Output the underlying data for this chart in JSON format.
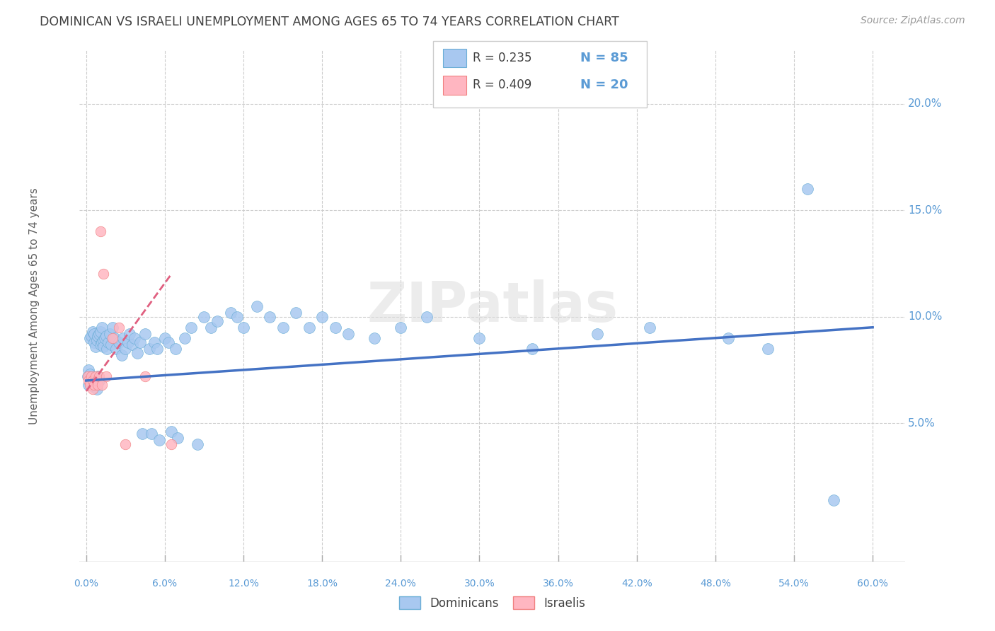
{
  "title": "DOMINICAN VS ISRAELI UNEMPLOYMENT AMONG AGES 65 TO 74 YEARS CORRELATION CHART",
  "source": "Source: ZipAtlas.com",
  "ylabel": "Unemployment Among Ages 65 to 74 years",
  "legend_r_dominicans": "R = 0.235",
  "legend_n_dominicans": "N = 85",
  "legend_r_israelis": "R = 0.409",
  "legend_n_israelis": "N = 20",
  "dominican_color": "#a8c8f0",
  "dominican_edge": "#6baed6",
  "israeli_color": "#ffb6c1",
  "israeli_edge": "#f08080",
  "trend_dominican_color": "#4472c4",
  "trend_israeli_color": "#e06080",
  "background_color": "#ffffff",
  "axis_color": "#5b9bd5",
  "watermark": "ZIPatlas",
  "dom_x": [
    0.001,
    0.002,
    0.002,
    0.003,
    0.003,
    0.004,
    0.004,
    0.005,
    0.005,
    0.006,
    0.006,
    0.006,
    0.007,
    0.007,
    0.008,
    0.008,
    0.009,
    0.009,
    0.01,
    0.01,
    0.011,
    0.011,
    0.012,
    0.012,
    0.013,
    0.013,
    0.014,
    0.015,
    0.016,
    0.017,
    0.018,
    0.019,
    0.02,
    0.022,
    0.023,
    0.025,
    0.027,
    0.028,
    0.03,
    0.032,
    0.033,
    0.035,
    0.037,
    0.039,
    0.041,
    0.043,
    0.045,
    0.048,
    0.05,
    0.052,
    0.054,
    0.056,
    0.06,
    0.063,
    0.065,
    0.068,
    0.07,
    0.075,
    0.08,
    0.085,
    0.09,
    0.095,
    0.1,
    0.11,
    0.115,
    0.12,
    0.13,
    0.14,
    0.15,
    0.16,
    0.17,
    0.18,
    0.19,
    0.2,
    0.22,
    0.24,
    0.26,
    0.3,
    0.34,
    0.39,
    0.43,
    0.49,
    0.52,
    0.55,
    0.57
  ],
  "dom_y": [
    0.072,
    0.075,
    0.068,
    0.09,
    0.073,
    0.091,
    0.069,
    0.093,
    0.07,
    0.067,
    0.088,
    0.092,
    0.071,
    0.086,
    0.066,
    0.089,
    0.072,
    0.091,
    0.07,
    0.092,
    0.093,
    0.087,
    0.088,
    0.095,
    0.089,
    0.086,
    0.09,
    0.091,
    0.085,
    0.088,
    0.092,
    0.087,
    0.095,
    0.09,
    0.085,
    0.088,
    0.082,
    0.09,
    0.085,
    0.088,
    0.092,
    0.087,
    0.09,
    0.083,
    0.088,
    0.045,
    0.092,
    0.085,
    0.045,
    0.088,
    0.085,
    0.042,
    0.09,
    0.088,
    0.046,
    0.085,
    0.043,
    0.09,
    0.095,
    0.04,
    0.1,
    0.095,
    0.098,
    0.102,
    0.1,
    0.095,
    0.105,
    0.1,
    0.095,
    0.102,
    0.095,
    0.1,
    0.095,
    0.092,
    0.09,
    0.095,
    0.1,
    0.09,
    0.085,
    0.092,
    0.095,
    0.09,
    0.085,
    0.16,
    0.014
  ],
  "isr_x": [
    0.001,
    0.002,
    0.003,
    0.004,
    0.005,
    0.005,
    0.006,
    0.007,
    0.008,
    0.009,
    0.01,
    0.011,
    0.012,
    0.013,
    0.015,
    0.02,
    0.025,
    0.03,
    0.045,
    0.065
  ],
  "isr_y": [
    0.072,
    0.07,
    0.068,
    0.072,
    0.07,
    0.066,
    0.068,
    0.072,
    0.07,
    0.068,
    0.072,
    0.14,
    0.068,
    0.12,
    0.072,
    0.09,
    0.095,
    0.04,
    0.072,
    0.04
  ],
  "dom_trend_x": [
    0.0,
    0.6
  ],
  "dom_trend_y": [
    0.07,
    0.095
  ],
  "isr_trend_x": [
    0.0,
    0.065
  ],
  "isr_trend_y": [
    0.065,
    0.12
  ],
  "xlim": [
    -0.005,
    0.625
  ],
  "ylim": [
    -0.015,
    0.225
  ],
  "ytick_vals": [
    0.05,
    0.1,
    0.15,
    0.2
  ],
  "ytick_labels": [
    "5.0%",
    "10.0%",
    "15.0%",
    "20.0%"
  ],
  "xtick_vals": [
    0.0,
    0.06,
    0.12,
    0.18,
    0.24,
    0.3,
    0.36,
    0.42,
    0.48,
    0.54,
    0.6
  ],
  "xtick_labels": [
    "0.0%",
    "6.0%",
    "12.0%",
    "18.0%",
    "24.0%",
    "30.0%",
    "36.0%",
    "42.0%",
    "48.0%",
    "54.0%",
    "60.0%"
  ]
}
